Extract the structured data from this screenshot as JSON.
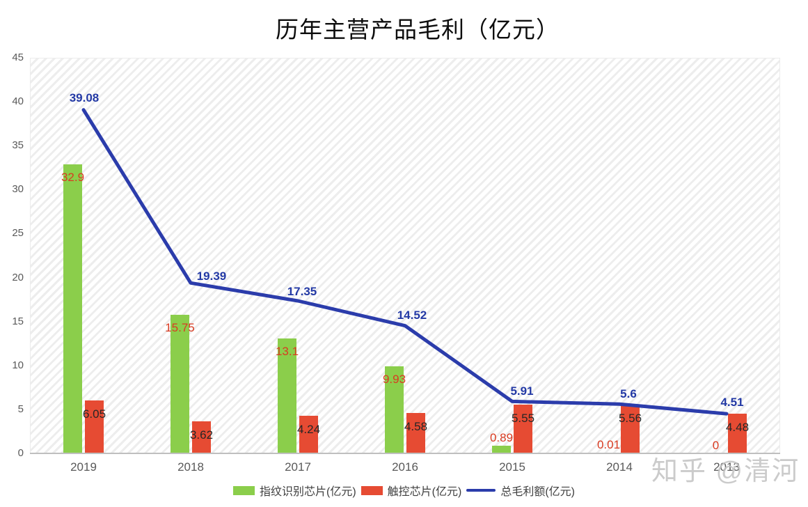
{
  "title": "历年主营产品毛利（亿元）",
  "watermark": {
    "text": "知乎 @清河"
  },
  "colors": {
    "bar_green": "#8BCE4B",
    "bar_red": "#E64B33",
    "line_blue": "#2B3CAB",
    "green_series_label": "#D93B21",
    "red_series_label": "#262626",
    "line_series_label": "#2339A5",
    "axis_text": "#595959",
    "legend_text": "#3F3F3F",
    "axis_line": "#BFBFBF",
    "hatch_stripe": "#EDEDED",
    "watermark_text": "#C3C3C3"
  },
  "chart_data": {
    "type": "combo-bar-line",
    "title": "历年主营产品毛利（亿元）",
    "categories": [
      "2019",
      "2018",
      "2017",
      "2016",
      "2015",
      "2014",
      "2013"
    ],
    "series": [
      {
        "name": "指纹识别芯片(亿元)",
        "type": "bar",
        "color": "#8BCE4B",
        "label_color": "#D93B21",
        "values": [
          32.9,
          15.75,
          13.1,
          9.93,
          0.89,
          0.01,
          0
        ]
      },
      {
        "name": "触控芯片(亿元)",
        "type": "bar",
        "color": "#E64B33",
        "label_color": "#262626",
        "values": [
          6.05,
          3.62,
          4.24,
          4.58,
          5.55,
          5.56,
          4.48
        ]
      },
      {
        "name": "总毛利额(亿元)",
        "type": "line",
        "color": "#2B3CAB",
        "label_color": "#2339A5",
        "values": [
          39.08,
          19.39,
          17.35,
          14.52,
          5.91,
          5.6,
          4.51
        ]
      }
    ],
    "ylim": [
      0,
      45
    ],
    "ytick_step": 5,
    "yticks": [
      0,
      5,
      10,
      15,
      20,
      25,
      30,
      35,
      40,
      45
    ],
    "grid": false,
    "legend_position": "bottom",
    "plot_background": "diagonal-hatch",
    "data_labels": true
  }
}
